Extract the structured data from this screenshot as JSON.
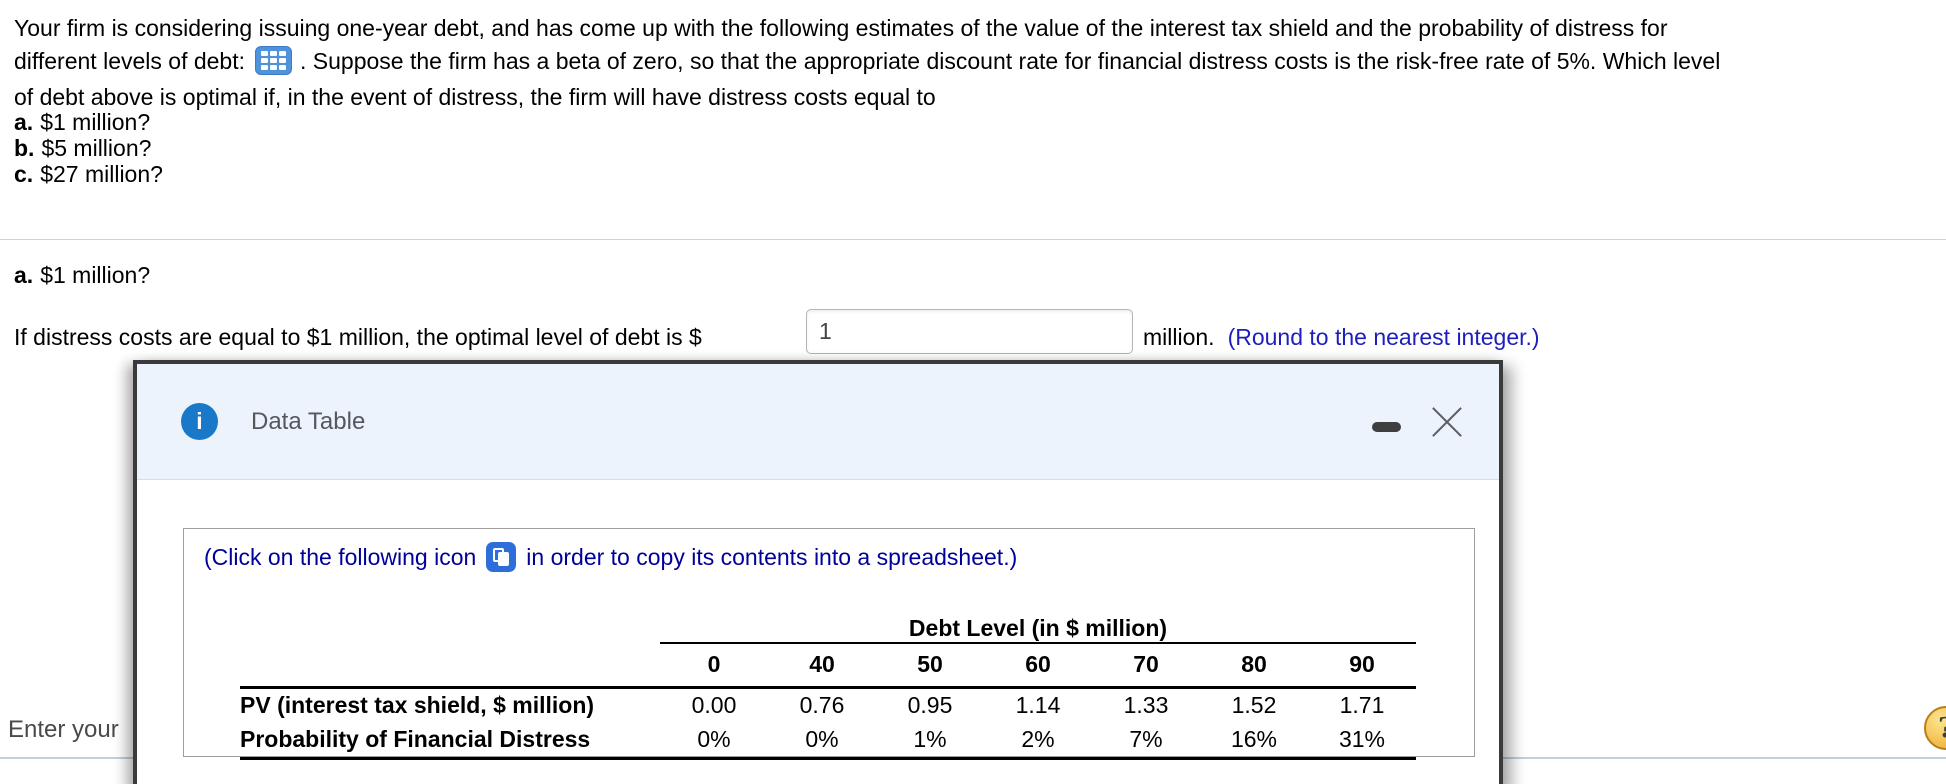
{
  "question": {
    "line1": "Your firm is considering issuing one-year debt, and has come up with the following estimates of the value of the interest tax shield and the probability of distress for",
    "line2_before_icon": "different levels of debt:",
    "line2_after_icon": ". Suppose the firm has a beta of zero, so that the appropriate discount rate for financial distress costs is the risk-free rate of 5%. Which level",
    "line3": "of debt above is optimal if, in the event of distress, the firm will have distress costs equal to",
    "items": [
      {
        "label": "a.",
        "text": "$1 million?"
      },
      {
        "label": "b.",
        "text": "$5 million?"
      },
      {
        "label": "c.",
        "text": "$27 million?"
      }
    ]
  },
  "part_a": {
    "heading_label": "a.",
    "heading_text": "$1 million?",
    "answer_prefix": "If distress costs are equal to $1 million, the optimal level of debt is $",
    "answer_value": "1",
    "answer_suffix": "million.",
    "answer_hint": "(Round to the nearest integer.)"
  },
  "dialog": {
    "title": "Data Table",
    "info_glyph": "i",
    "instruction_before_icon": "(Click on the following icon",
    "instruction_after_icon": "in order to copy its contents into a spreadsheet.)",
    "table": {
      "group_header": "Debt Level (in $ million)",
      "columns": [
        "0",
        "40",
        "50",
        "60",
        "70",
        "80",
        "90"
      ],
      "rows": [
        {
          "label": "PV (interest tax shield, $ million)",
          "values": [
            "0.00",
            "0.76",
            "0.95",
            "1.14",
            "1.33",
            "1.52",
            "1.71"
          ]
        },
        {
          "label": "Probability of Financial Distress",
          "values": [
            "0%",
            "0%",
            "1%",
            "2%",
            "7%",
            "16%",
            "31%"
          ]
        }
      ]
    }
  },
  "footer": {
    "partial_text": "Enter your",
    "help_glyph": "?"
  }
}
